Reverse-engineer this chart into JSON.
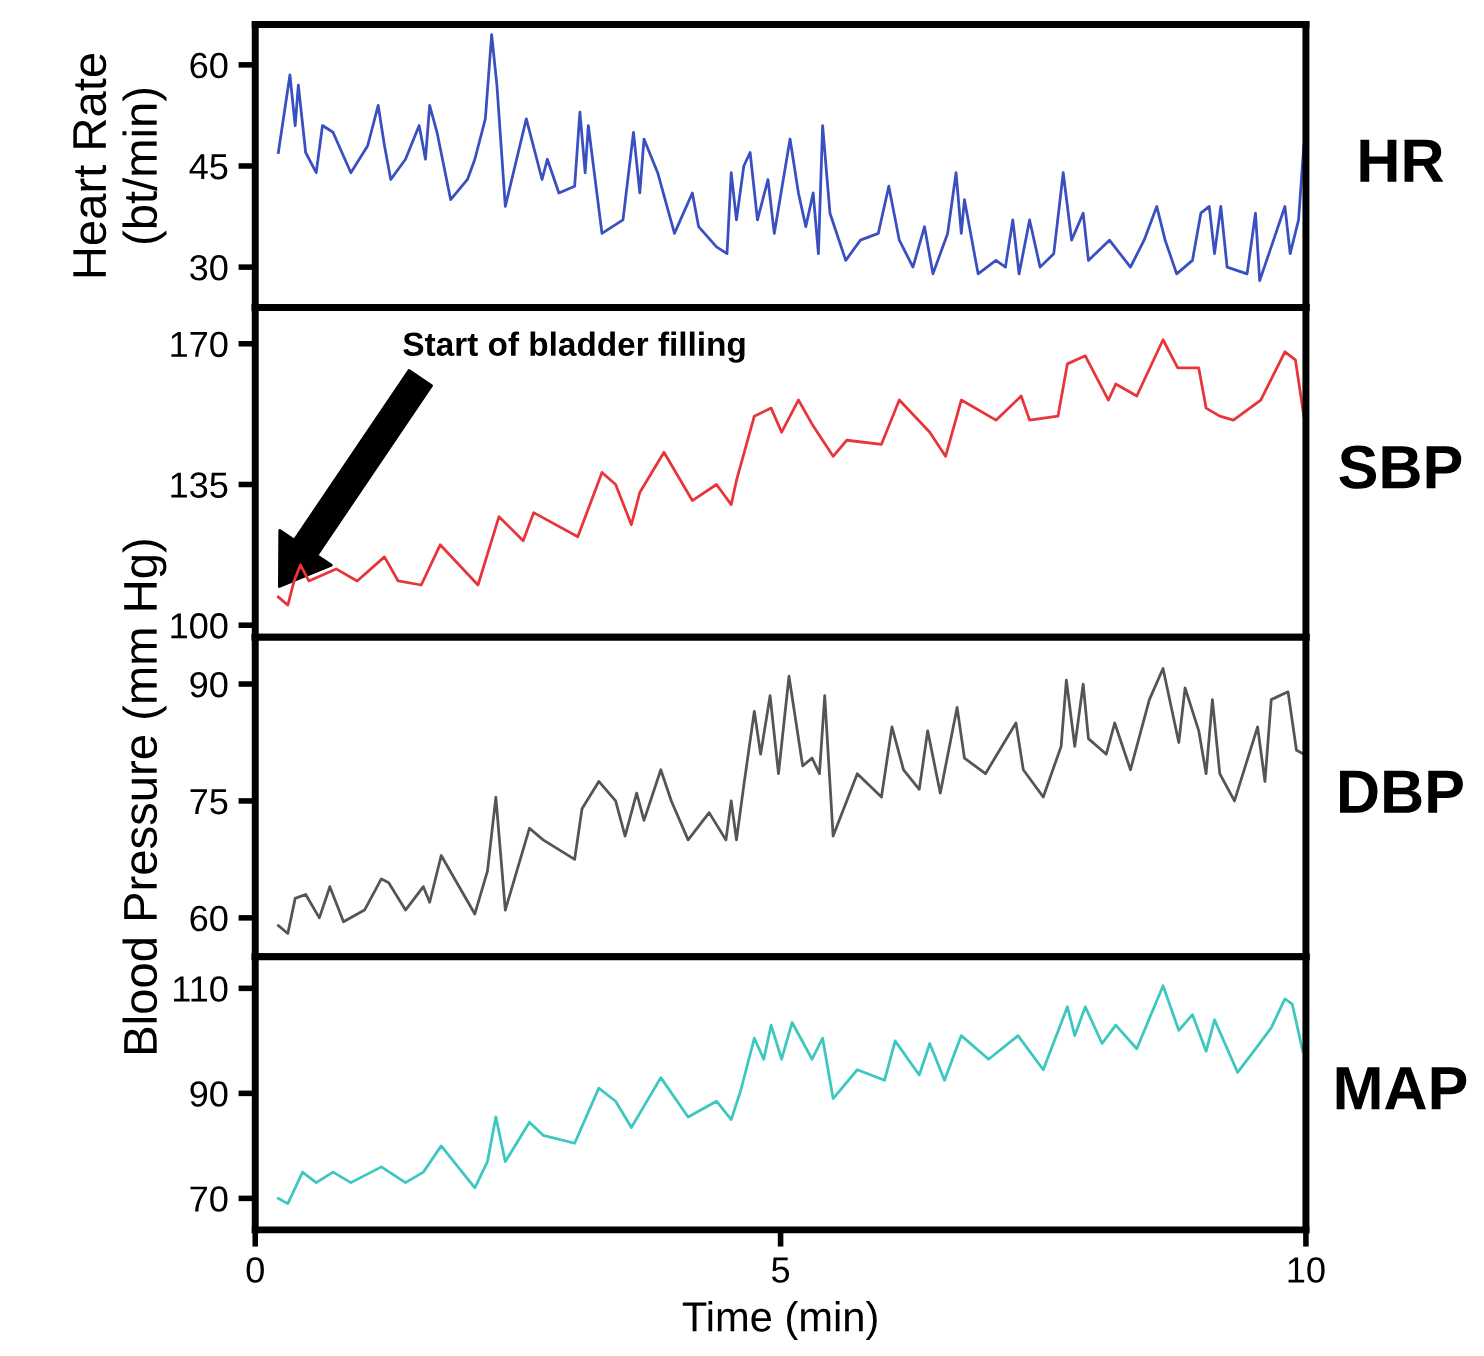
{
  "chart_data": [
    {
      "type": "line",
      "ylabel": "Heart Rate\n(bt/min)",
      "annotations": [
        "HR"
      ],
      "xlim": [
        0,
        10
      ],
      "xticks": [
        0,
        5,
        10
      ],
      "ylim": [
        24,
        66
      ],
      "yticks": [
        30,
        45,
        60
      ],
      "tick_labels": "y",
      "grid": false,
      "legend": false,
      "x": [
        0.22,
        0.33,
        0.38,
        0.41,
        0.48,
        0.58,
        0.64,
        0.74,
        0.91,
        1.07,
        1.17,
        1.23,
        1.29,
        1.43,
        1.56,
        1.62,
        1.66,
        1.73,
        1.86,
        2.02,
        2.09,
        2.19,
        2.25,
        2.3,
        2.38,
        2.58,
        2.73,
        2.78,
        2.89,
        3.04,
        3.09,
        3.14,
        3.17,
        3.3,
        3.5,
        3.6,
        3.66,
        3.7,
        3.83,
        3.99,
        4.16,
        4.22,
        4.39,
        4.49,
        4.53,
        4.58,
        4.65,
        4.71,
        4.78,
        4.88,
        4.94,
        5.09,
        5.17,
        5.24,
        5.31,
        5.36,
        5.4,
        5.47,
        5.62,
        5.76,
        5.93,
        6.03,
        6.13,
        6.26,
        6.37,
        6.45,
        6.59,
        6.67,
        6.72,
        6.75,
        6.88,
        7.05,
        7.14,
        7.21,
        7.27,
        7.37,
        7.47,
        7.6,
        7.69,
        7.77,
        7.88,
        7.93,
        8.13,
        8.33,
        8.46,
        8.58,
        8.66,
        8.77,
        8.92,
        9.0,
        9.08,
        9.13,
        9.19,
        9.25,
        9.44,
        9.52,
        9.56,
        9.67,
        9.8,
        9.85,
        9.93,
        9.98
      ],
      "series": [
        {
          "color": "#3a4fc0",
          "values": [
            47,
            58.5,
            51,
            57,
            47,
            44,
            51,
            50,
            44,
            48,
            54,
            48,
            43,
            46,
            51,
            46,
            54,
            50,
            40,
            43,
            46,
            52,
            64.5,
            57,
            39,
            52,
            43,
            46,
            41,
            42,
            53,
            44,
            51,
            35,
            37,
            50,
            41,
            49,
            44,
            35,
            41,
            36,
            33,
            32,
            44,
            37,
            45,
            47,
            37,
            43,
            35,
            49,
            41,
            36,
            41,
            32,
            51,
            38,
            31,
            34,
            35,
            42,
            34,
            30,
            36,
            29,
            35,
            44,
            35,
            40,
            29,
            31,
            30,
            37,
            29,
            37,
            30,
            32,
            44,
            34,
            38,
            31,
            34,
            30,
            34,
            39,
            34,
            29,
            31,
            38,
            39,
            32,
            39,
            30,
            29,
            38,
            28,
            33,
            39,
            32,
            37,
            48
          ]
        }
      ]
    },
    {
      "type": "line",
      "annotations": [
        "SBP",
        "Start of bladder filling"
      ],
      "xlim": [
        0,
        10
      ],
      "xticks": [
        0,
        5,
        10
      ],
      "ylim": [
        97,
        179
      ],
      "yticks": [
        100,
        135,
        170
      ],
      "tick_labels": "y",
      "grid": false,
      "legend": false,
      "x": [
        0.22,
        0.31,
        0.37,
        0.43,
        0.51,
        0.77,
        0.97,
        1.23,
        1.36,
        1.58,
        1.76,
        2.12,
        2.32,
        2.55,
        2.65,
        3.07,
        3.3,
        3.43,
        3.58,
        3.66,
        3.89,
        4.16,
        4.39,
        4.53,
        4.58,
        4.75,
        4.91,
        5.01,
        5.17,
        5.3,
        5.5,
        5.63,
        5.96,
        6.13,
        6.42,
        6.57,
        6.72,
        7.05,
        7.29,
        7.37,
        7.64,
        7.73,
        7.9,
        8.12,
        8.19,
        8.39,
        8.64,
        8.78,
        8.98,
        9.05,
        9.18,
        9.31,
        9.57,
        9.8,
        9.9,
        9.98
      ],
      "series": [
        {
          "color": "#e8353a",
          "values": [
            107,
            105,
            111,
            115,
            111,
            114,
            111,
            117,
            111,
            110,
            120,
            110,
            127,
            121,
            128,
            122,
            138,
            135,
            125,
            133,
            143,
            131,
            135,
            130,
            136,
            152,
            154,
            148,
            156,
            150,
            142,
            146,
            145,
            156,
            148,
            142,
            156,
            151,
            157,
            151,
            152,
            165,
            167,
            156,
            160,
            157,
            171,
            164,
            164,
            154,
            152,
            151,
            156,
            168,
            166,
            152
          ]
        }
      ]
    },
    {
      "type": "line",
      "ylabel": "Blood Pressure (mm Hg)",
      "annotations": [
        "DBP"
      ],
      "xlim": [
        0,
        10
      ],
      "xticks": [
        0,
        5,
        10
      ],
      "ylim": [
        55,
        96
      ],
      "yticks": [
        60,
        75,
        90
      ],
      "tick_labels": "y",
      "grid": false,
      "legend": false,
      "x": [
        0.22,
        0.31,
        0.38,
        0.48,
        0.61,
        0.71,
        0.84,
        1.04,
        1.2,
        1.27,
        1.43,
        1.6,
        1.66,
        1.77,
        2.09,
        2.21,
        2.29,
        2.38,
        2.61,
        2.74,
        3.04,
        3.11,
        3.27,
        3.43,
        3.52,
        3.63,
        3.7,
        3.86,
        3.96,
        4.12,
        4.32,
        4.48,
        4.53,
        4.58,
        4.65,
        4.75,
        4.81,
        4.9,
        4.98,
        5.08,
        5.21,
        5.3,
        5.37,
        5.42,
        5.5,
        5.73,
        5.96,
        6.06,
        6.17,
        6.32,
        6.4,
        6.52,
        6.68,
        6.75,
        6.95,
        7.24,
        7.31,
        7.5,
        7.67,
        7.72,
        7.8,
        7.88,
        7.93,
        8.1,
        8.18,
        8.33,
        8.51,
        8.64,
        8.79,
        8.85,
        8.98,
        9.05,
        9.11,
        9.18,
        9.32,
        9.54,
        9.61,
        9.67,
        9.83,
        9.91,
        9.98
      ],
      "series": [
        {
          "color": "#555555",
          "values": [
            59,
            58,
            62.5,
            63,
            60,
            64,
            59.5,
            61,
            65,
            64.5,
            61,
            64,
            62,
            68,
            60.5,
            66,
            75.5,
            61,
            71.5,
            70,
            67.5,
            74,
            77.5,
            75,
            70.5,
            76,
            72.5,
            79,
            75,
            70,
            73.5,
            70,
            75,
            70,
            77,
            86.5,
            81,
            88.5,
            78.5,
            91,
            79.5,
            80.5,
            78.5,
            88.5,
            70.5,
            78.5,
            75.5,
            84.5,
            79,
            76.5,
            84,
            76,
            87,
            80.5,
            78.5,
            85,
            79,
            75.5,
            82,
            90.5,
            82,
            90,
            83,
            81,
            85,
            79,
            88,
            92,
            82.5,
            89.5,
            84,
            78.5,
            88,
            78.5,
            75,
            84.5,
            77.5,
            88,
            89,
            81.5,
            81
          ]
        }
      ]
    },
    {
      "type": "line",
      "xlabel": "Time (min)",
      "annotations": [
        "MAP"
      ],
      "xlim": [
        0,
        10
      ],
      "xticks": [
        0,
        5,
        10
      ],
      "ylim": [
        64,
        116
      ],
      "yticks": [
        70,
        90,
        110
      ],
      "grid": false,
      "legend": false,
      "x": [
        0.22,
        0.31,
        0.45,
        0.58,
        0.74,
        0.91,
        1.2,
        1.43,
        1.6,
        1.77,
        2.09,
        2.21,
        2.29,
        2.38,
        2.61,
        2.74,
        3.04,
        3.27,
        3.43,
        3.58,
        3.86,
        4.12,
        4.39,
        4.53,
        4.62,
        4.75,
        4.84,
        4.91,
        5.01,
        5.11,
        5.3,
        5.4,
        5.5,
        5.73,
        5.99,
        6.09,
        6.32,
        6.42,
        6.56,
        6.72,
        6.98,
        7.26,
        7.5,
        7.73,
        7.8,
        7.9,
        8.06,
        8.19,
        8.39,
        8.64,
        8.79,
        8.92,
        9.05,
        9.13,
        9.35,
        9.54,
        9.67,
        9.8,
        9.87,
        9.97
      ],
      "series": [
        {
          "color": "#3cc8c0",
          "values": [
            70,
            69,
            75,
            73,
            75,
            73,
            76,
            73,
            75,
            80,
            72,
            77,
            85.5,
            77,
            84.5,
            82,
            80.5,
            91,
            88.5,
            83.5,
            93,
            85.5,
            88.5,
            85,
            90.5,
            100.5,
            96.5,
            103,
            96.5,
            103.5,
            96.5,
            100.5,
            89,
            94.5,
            92.5,
            100,
            93.5,
            99.5,
            92.5,
            101,
            96.5,
            101,
            94.5,
            106.5,
            101,
            106.5,
            99.5,
            103,
            98.5,
            110.5,
            102,
            105,
            98,
            104,
            94,
            99,
            102.5,
            108,
            107,
            98
          ]
        }
      ]
    }
  ]
}
